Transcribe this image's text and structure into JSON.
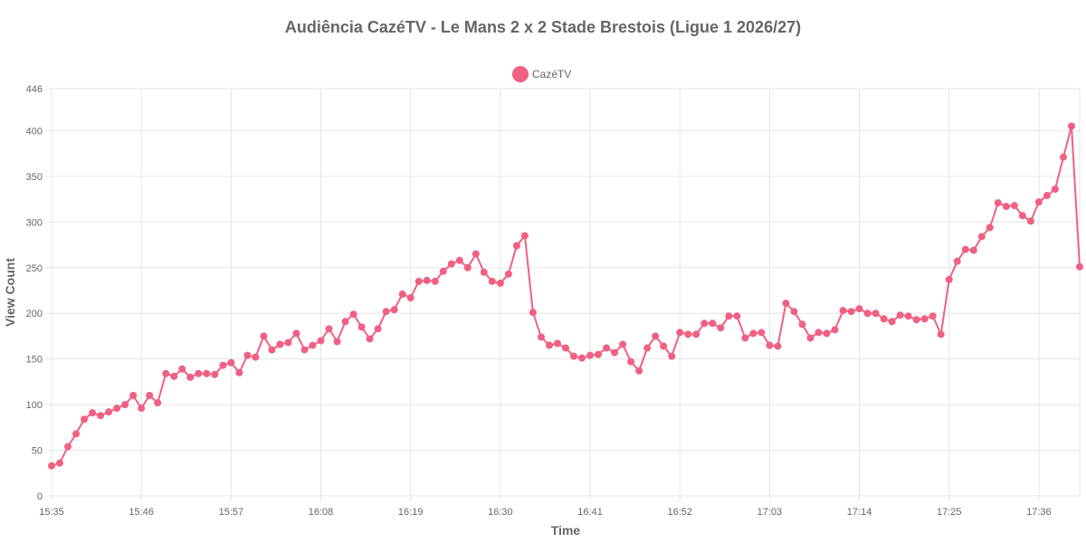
{
  "chart_data": {
    "type": "line",
    "title": "Audiência CazéTV - Le Mans 2 x 2 Stade Brestois (Ligue 1 2026/27)",
    "xlabel": "Time",
    "ylabel": "View Count",
    "ylim": [
      0,
      446
    ],
    "y_ticks": [
      0,
      50,
      100,
      150,
      200,
      250,
      300,
      350,
      400,
      446
    ],
    "x_tick_labels": [
      "15:35",
      "15:46",
      "15:57",
      "16:08",
      "16:19",
      "16:30",
      "16:41",
      "16:52",
      "17:03",
      "17:14",
      "17:25",
      "17:36"
    ],
    "grid": true,
    "legend_position": "top",
    "colors": {
      "series": "#f06083",
      "grid": "#e5e5e5",
      "text": "#666666"
    },
    "series": [
      {
        "name": "CazéTV",
        "values": [
          33,
          36,
          54,
          68,
          84,
          91,
          88,
          92,
          96,
          100,
          110,
          96,
          110,
          102,
          134,
          131,
          139,
          130,
          134,
          134,
          133,
          143,
          146,
          135,
          154,
          152,
          175,
          160,
          166,
          168,
          178,
          160,
          165,
          170,
          183,
          169,
          191,
          199,
          185,
          172,
          183,
          202,
          204,
          221,
          217,
          235,
          236,
          235,
          246,
          254,
          258,
          250,
          265,
          245,
          235,
          233,
          243,
          274,
          285,
          201,
          174,
          165,
          167,
          162,
          153,
          151,
          154,
          155,
          162,
          157,
          166,
          147,
          137,
          162,
          175,
          164,
          153,
          179,
          177,
          177,
          189,
          189,
          184,
          197,
          197,
          173,
          178,
          179,
          165,
          164,
          211,
          202,
          188,
          173,
          179,
          178,
          182,
          203,
          202,
          205,
          200,
          200,
          194,
          191,
          198,
          197,
          193,
          194,
          197,
          177,
          237,
          257,
          270,
          269,
          284,
          294,
          321,
          317,
          318,
          307,
          301,
          322,
          329,
          336,
          371,
          405,
          251
        ]
      }
    ]
  }
}
